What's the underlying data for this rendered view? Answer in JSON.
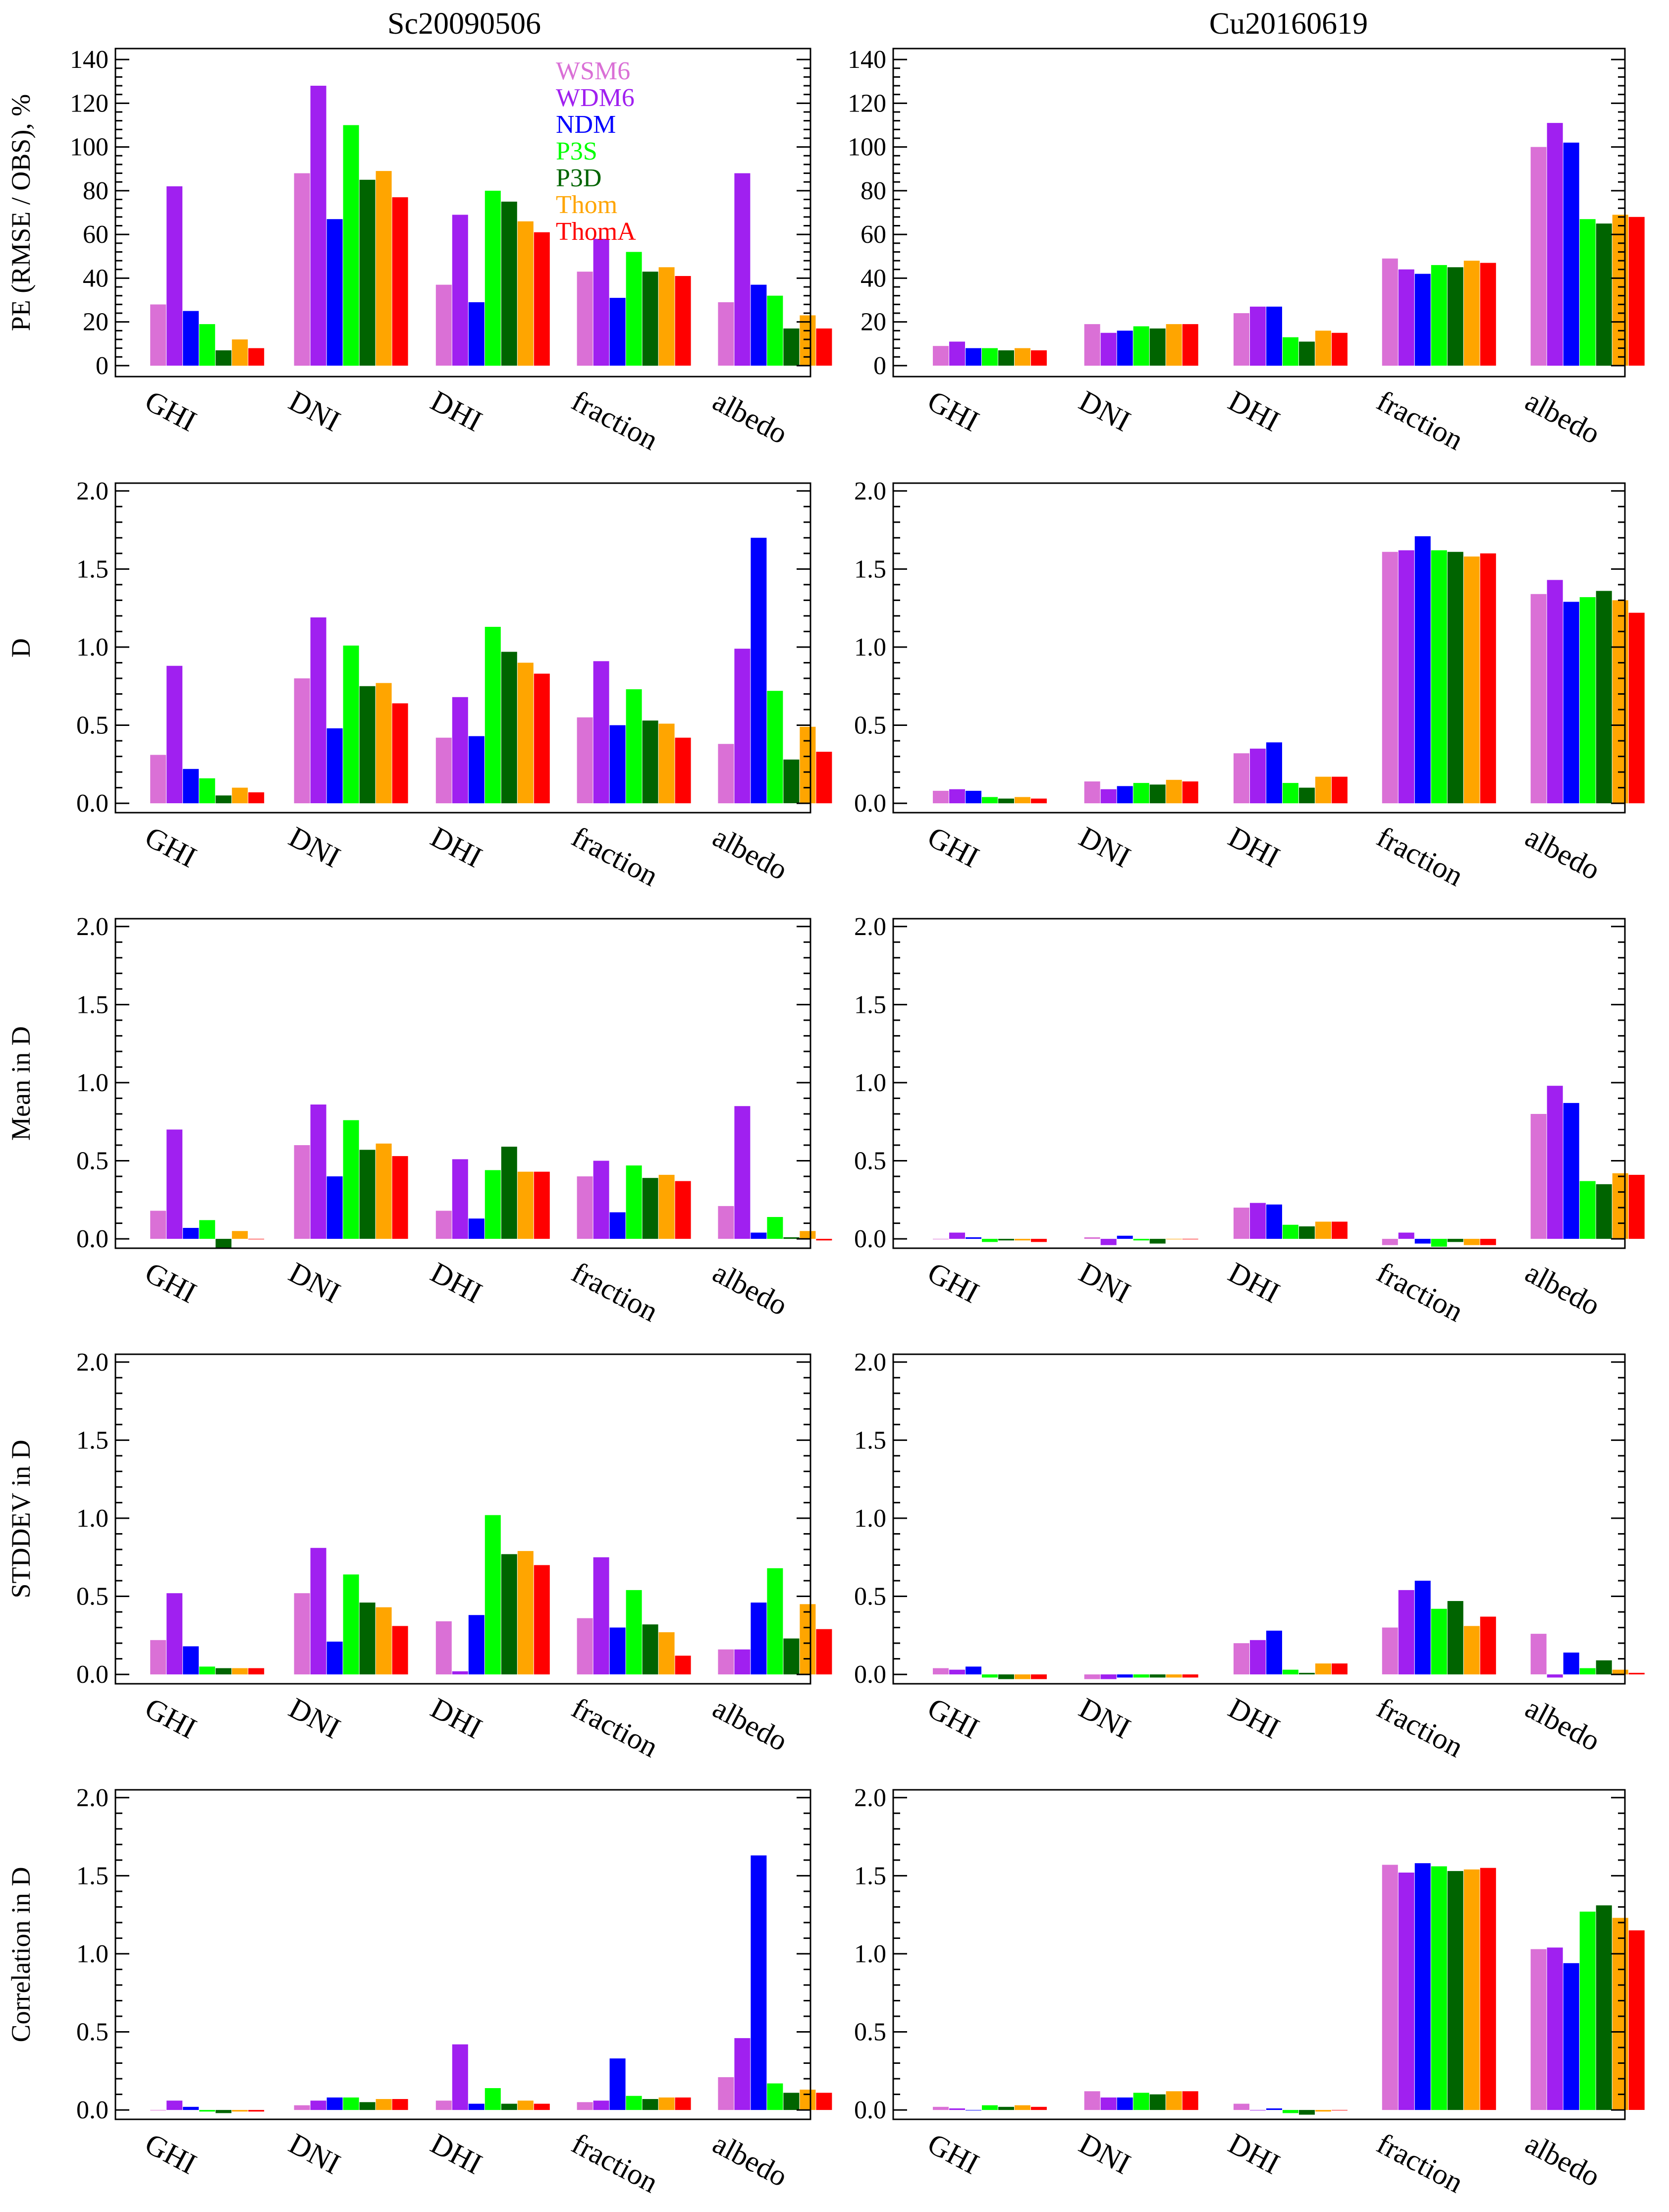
{
  "columns": [
    "Sc20090506",
    "Cu20160619"
  ],
  "legend": [
    {
      "name": "WSM6",
      "color": "#DA70D6"
    },
    {
      "name": "WDM6",
      "color": "#A020F0"
    },
    {
      "name": "NDM",
      "color": "#0000FF"
    },
    {
      "name": "P3S",
      "color": "#00FF00"
    },
    {
      "name": "P3D",
      "color": "#006400"
    },
    {
      "name": "Thom",
      "color": "#FFA500"
    },
    {
      "name": "ThomA",
      "color": "#FF0000"
    }
  ],
  "chart_data": [
    {
      "type": "bar",
      "title": "Sc20090506",
      "ylabel": "PE (RMSE / OBS), %",
      "ylim": [
        -5,
        145
      ],
      "yticks": [
        0,
        20,
        40,
        60,
        80,
        100,
        120,
        140
      ],
      "categories": [
        "GHI",
        "DNI",
        "DHI",
        "fraction",
        "albedo"
      ],
      "series": [
        {
          "name": "WSM6",
          "values": [
            28,
            88,
            37,
            43,
            29
          ]
        },
        {
          "name": "WDM6",
          "values": [
            82,
            128,
            69,
            58,
            88
          ]
        },
        {
          "name": "NDM",
          "values": [
            25,
            67,
            29,
            31,
            37
          ]
        },
        {
          "name": "P3S",
          "values": [
            19,
            110,
            80,
            52,
            32
          ]
        },
        {
          "name": "P3D",
          "values": [
            7,
            85,
            75,
            43,
            17
          ]
        },
        {
          "name": "Thom",
          "values": [
            12,
            89,
            66,
            45,
            23
          ]
        },
        {
          "name": "ThomA",
          "values": [
            8,
            77,
            61,
            41,
            17
          ]
        }
      ]
    },
    {
      "type": "bar",
      "title": "Cu20160619",
      "ylabel": "",
      "ylim": [
        -5,
        145
      ],
      "yticks": [
        0,
        20,
        40,
        60,
        80,
        100,
        120,
        140
      ],
      "categories": [
        "GHI",
        "DNI",
        "DHI",
        "fraction",
        "albedo"
      ],
      "series": [
        {
          "name": "WSM6",
          "values": [
            9,
            19,
            24,
            49,
            100
          ]
        },
        {
          "name": "WDM6",
          "values": [
            11,
            15,
            27,
            44,
            111
          ]
        },
        {
          "name": "NDM",
          "values": [
            8,
            16,
            27,
            42,
            102
          ]
        },
        {
          "name": "P3S",
          "values": [
            8,
            18,
            13,
            46,
            67
          ]
        },
        {
          "name": "P3D",
          "values": [
            7,
            17,
            11,
            45,
            65
          ]
        },
        {
          "name": "Thom",
          "values": [
            8,
            19,
            16,
            48,
            69
          ]
        },
        {
          "name": "ThomA",
          "values": [
            7,
            19,
            15,
            47,
            68
          ]
        }
      ]
    },
    {
      "type": "bar",
      "title": "",
      "ylabel": "D",
      "ylim": [
        -0.06,
        2.05
      ],
      "yticks": [
        0.0,
        0.5,
        1.0,
        1.5,
        2.0
      ],
      "categories": [
        "GHI",
        "DNI",
        "DHI",
        "fraction",
        "albedo"
      ],
      "series": [
        {
          "name": "WSM6",
          "values": [
            0.31,
            0.8,
            0.42,
            0.55,
            0.38
          ]
        },
        {
          "name": "WDM6",
          "values": [
            0.88,
            1.19,
            0.68,
            0.91,
            0.99
          ]
        },
        {
          "name": "NDM",
          "values": [
            0.22,
            0.48,
            0.43,
            0.5,
            1.7
          ]
        },
        {
          "name": "P3S",
          "values": [
            0.16,
            1.01,
            1.13,
            0.73,
            0.72
          ]
        },
        {
          "name": "P3D",
          "values": [
            0.05,
            0.75,
            0.97,
            0.53,
            0.28
          ]
        },
        {
          "name": "Thom",
          "values": [
            0.1,
            0.77,
            0.9,
            0.51,
            0.49
          ]
        },
        {
          "name": "ThomA",
          "values": [
            0.07,
            0.64,
            0.83,
            0.42,
            0.33
          ]
        }
      ]
    },
    {
      "type": "bar",
      "title": "",
      "ylabel": "",
      "ylim": [
        -0.06,
        2.05
      ],
      "yticks": [
        0.0,
        0.5,
        1.0,
        1.5,
        2.0
      ],
      "categories": [
        "GHI",
        "DNI",
        "DHI",
        "fraction",
        "albedo"
      ],
      "series": [
        {
          "name": "WSM6",
          "values": [
            0.08,
            0.14,
            0.32,
            1.61,
            1.34
          ]
        },
        {
          "name": "WDM6",
          "values": [
            0.09,
            0.09,
            0.35,
            1.62,
            1.43
          ]
        },
        {
          "name": "NDM",
          "values": [
            0.08,
            0.11,
            0.39,
            1.71,
            1.29
          ]
        },
        {
          "name": "P3S",
          "values": [
            0.04,
            0.13,
            0.13,
            1.62,
            1.32
          ]
        },
        {
          "name": "P3D",
          "values": [
            0.03,
            0.12,
            0.1,
            1.61,
            1.36
          ]
        },
        {
          "name": "Thom",
          "values": [
            0.04,
            0.15,
            0.17,
            1.58,
            1.3
          ]
        },
        {
          "name": "ThomA",
          "values": [
            0.03,
            0.14,
            0.17,
            1.6,
            1.22
          ]
        }
      ]
    },
    {
      "type": "bar",
      "title": "",
      "ylabel": "Mean in D",
      "ylim": [
        -0.06,
        2.05
      ],
      "yticks": [
        0.0,
        0.5,
        1.0,
        1.5,
        2.0
      ],
      "categories": [
        "GHI",
        "DNI",
        "DHI",
        "fraction",
        "albedo"
      ],
      "series": [
        {
          "name": "WSM6",
          "values": [
            0.18,
            0.6,
            0.18,
            0.4,
            0.21
          ]
        },
        {
          "name": "WDM6",
          "values": [
            0.7,
            0.86,
            0.51,
            0.5,
            0.85
          ]
        },
        {
          "name": "NDM",
          "values": [
            0.07,
            0.4,
            0.13,
            0.17,
            0.04
          ]
        },
        {
          "name": "P3S",
          "values": [
            0.12,
            0.76,
            0.44,
            0.47,
            0.14
          ]
        },
        {
          "name": "P3D",
          "values": [
            -0.06,
            0.57,
            0.59,
            0.39,
            0.01
          ]
        },
        {
          "name": "Thom",
          "values": [
            0.05,
            0.61,
            0.43,
            0.41,
            0.05
          ]
        },
        {
          "name": "ThomA",
          "values": [
            0.0,
            0.53,
            0.43,
            0.37,
            -0.01
          ]
        }
      ]
    },
    {
      "type": "bar",
      "title": "",
      "ylabel": "",
      "ylim": [
        -0.06,
        2.05
      ],
      "yticks": [
        0.0,
        0.5,
        1.0,
        1.5,
        2.0
      ],
      "categories": [
        "GHI",
        "DNI",
        "DHI",
        "fraction",
        "albedo"
      ],
      "series": [
        {
          "name": "WSM6",
          "values": [
            0.0,
            0.01,
            0.2,
            -0.04,
            0.8
          ]
        },
        {
          "name": "WDM6",
          "values": [
            0.04,
            -0.04,
            0.23,
            0.04,
            0.98
          ]
        },
        {
          "name": "NDM",
          "values": [
            0.01,
            0.02,
            0.22,
            -0.03,
            0.87
          ]
        },
        {
          "name": "P3S",
          "values": [
            -0.02,
            -0.01,
            0.09,
            -0.05,
            0.37
          ]
        },
        {
          "name": "P3D",
          "values": [
            -0.01,
            -0.03,
            0.08,
            -0.02,
            0.35
          ]
        },
        {
          "name": "Thom",
          "values": [
            -0.01,
            0.0,
            0.11,
            -0.04,
            0.42
          ]
        },
        {
          "name": "ThomA",
          "values": [
            -0.02,
            0.0,
            0.11,
            -0.04,
            0.41
          ]
        }
      ]
    },
    {
      "type": "bar",
      "title": "",
      "ylabel": "STDDEV in D",
      "ylim": [
        -0.06,
        2.05
      ],
      "yticks": [
        0.0,
        0.5,
        1.0,
        1.5,
        2.0
      ],
      "categories": [
        "GHI",
        "DNI",
        "DHI",
        "fraction",
        "albedo"
      ],
      "series": [
        {
          "name": "WSM6",
          "values": [
            0.22,
            0.52,
            0.34,
            0.36,
            0.16
          ]
        },
        {
          "name": "WDM6",
          "values": [
            0.52,
            0.81,
            0.02,
            0.75,
            0.16
          ]
        },
        {
          "name": "NDM",
          "values": [
            0.18,
            0.21,
            0.38,
            0.3,
            0.46
          ]
        },
        {
          "name": "P3S",
          "values": [
            0.05,
            0.64,
            1.02,
            0.54,
            0.68
          ]
        },
        {
          "name": "P3D",
          "values": [
            0.04,
            0.46,
            0.77,
            0.32,
            0.23
          ]
        },
        {
          "name": "Thom",
          "values": [
            0.04,
            0.43,
            0.79,
            0.27,
            0.45
          ]
        },
        {
          "name": "ThomA",
          "values": [
            0.04,
            0.31,
            0.7,
            0.12,
            0.29
          ]
        }
      ]
    },
    {
      "type": "bar",
      "title": "",
      "ylabel": "",
      "ylim": [
        -0.06,
        2.05
      ],
      "yticks": [
        0.0,
        0.5,
        1.0,
        1.5,
        2.0
      ],
      "categories": [
        "GHI",
        "DNI",
        "DHI",
        "fraction",
        "albedo"
      ],
      "series": [
        {
          "name": "WSM6",
          "values": [
            0.04,
            -0.03,
            0.2,
            0.3,
            0.26
          ]
        },
        {
          "name": "WDM6",
          "values": [
            0.03,
            -0.03,
            0.22,
            0.54,
            -0.02
          ]
        },
        {
          "name": "NDM",
          "values": [
            0.05,
            -0.02,
            0.28,
            0.6,
            0.14
          ]
        },
        {
          "name": "P3S",
          "values": [
            -0.02,
            -0.02,
            0.03,
            0.42,
            0.04
          ]
        },
        {
          "name": "P3D",
          "values": [
            -0.03,
            -0.02,
            0.01,
            0.47,
            0.09
          ]
        },
        {
          "name": "Thom",
          "values": [
            -0.03,
            -0.02,
            0.07,
            0.31,
            0.03
          ]
        },
        {
          "name": "ThomA",
          "values": [
            -0.03,
            -0.02,
            0.07,
            0.37,
            0.01
          ]
        }
      ]
    },
    {
      "type": "bar",
      "title": "",
      "ylabel": "Correlation in D",
      "ylim": [
        -0.06,
        2.05
      ],
      "yticks": [
        0.0,
        0.5,
        1.0,
        1.5,
        2.0
      ],
      "categories": [
        "GHI",
        "DNI",
        "DHI",
        "fraction",
        "albedo"
      ],
      "series": [
        {
          "name": "WSM6",
          "values": [
            0.0,
            0.03,
            0.06,
            0.05,
            0.21
          ]
        },
        {
          "name": "WDM6",
          "values": [
            0.06,
            0.06,
            0.42,
            0.06,
            0.46
          ]
        },
        {
          "name": "NDM",
          "values": [
            0.02,
            0.08,
            0.04,
            0.33,
            1.63
          ]
        },
        {
          "name": "P3S",
          "values": [
            -0.01,
            0.08,
            0.14,
            0.09,
            0.17
          ]
        },
        {
          "name": "P3D",
          "values": [
            -0.02,
            0.05,
            0.04,
            0.07,
            0.11
          ]
        },
        {
          "name": "Thom",
          "values": [
            -0.01,
            0.07,
            0.06,
            0.08,
            0.13
          ]
        },
        {
          "name": "ThomA",
          "values": [
            -0.01,
            0.07,
            0.04,
            0.08,
            0.11
          ]
        }
      ]
    },
    {
      "type": "bar",
      "title": "",
      "ylabel": "",
      "ylim": [
        -0.06,
        2.05
      ],
      "yticks": [
        0.0,
        0.5,
        1.0,
        1.5,
        2.0
      ],
      "categories": [
        "GHI",
        "DNI",
        "DHI",
        "fraction",
        "albedo"
      ],
      "series": [
        {
          "name": "WSM6",
          "values": [
            0.02,
            0.12,
            0.04,
            1.57,
            1.03
          ]
        },
        {
          "name": "WDM6",
          "values": [
            0.01,
            0.08,
            0.0,
            1.52,
            1.04
          ]
        },
        {
          "name": "NDM",
          "values": [
            0.0,
            0.08,
            0.01,
            1.58,
            0.94
          ]
        },
        {
          "name": "P3S",
          "values": [
            0.03,
            0.11,
            -0.02,
            1.56,
            1.27
          ]
        },
        {
          "name": "P3D",
          "values": [
            0.02,
            0.1,
            -0.03,
            1.53,
            1.31
          ]
        },
        {
          "name": "Thom",
          "values": [
            0.03,
            0.12,
            -0.01,
            1.54,
            1.23
          ]
        },
        {
          "name": "ThomA",
          "values": [
            0.02,
            0.12,
            0.0,
            1.55,
            1.15
          ]
        }
      ]
    }
  ]
}
